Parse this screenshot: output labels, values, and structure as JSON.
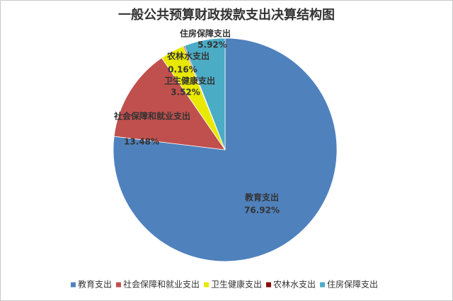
{
  "chart_data": {
    "type": "pie",
    "title": "一般公共预算财政拨款支出决算结构图",
    "categories": [
      "教育支出",
      "社会保障和就业支出",
      "卫生健康支出",
      "农林水支出",
      "住房保障支出"
    ],
    "values": [
      76.92,
      13.48,
      3.52,
      0.16,
      5.92
    ],
    "value_labels": [
      "76.92%",
      "13.48%",
      "3.52%",
      "0.16%",
      "5.92%"
    ],
    "colors": [
      "#4f81bd",
      "#c0504d",
      "#e8e800",
      "#8b0a0a",
      "#4bacc6"
    ],
    "legend": "bottom"
  }
}
